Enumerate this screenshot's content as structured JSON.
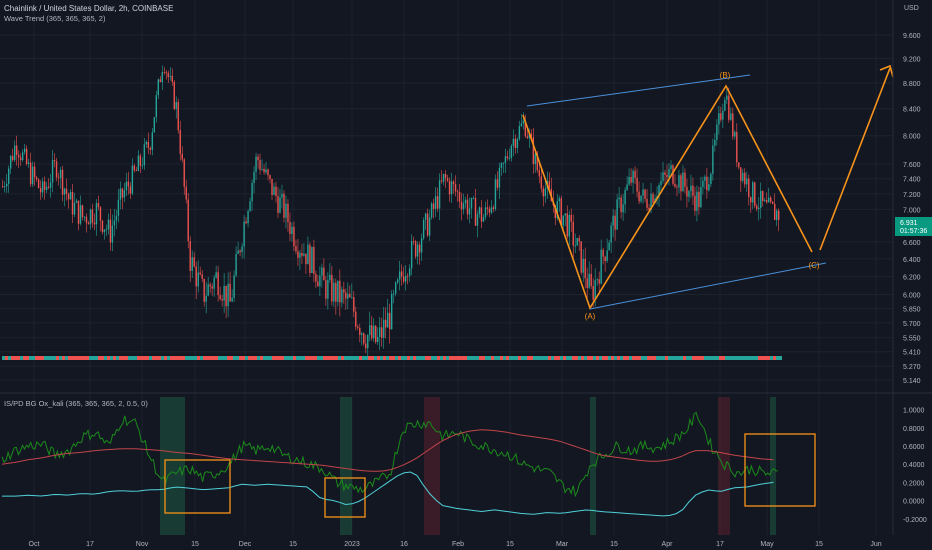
{
  "header": {
    "title": "Chainlink / United States Dollar, 2h, COINBASE",
    "subtitle": "Wave Trend (365, 365, 365, 2)",
    "indicator_title": "IS/PD BG Ox_kali (365, 365, 365, 2, 0.5, 0)",
    "currency": "USD"
  },
  "price_badge": {
    "value": "6.931",
    "countdown": "01:57:36",
    "color": "#089981"
  },
  "colors": {
    "background": "#131722",
    "bull_candle": "#26a69a",
    "bear_candle": "#ef5350",
    "elliott": "#f7931a",
    "channel": "#4a90d9",
    "osc_green": "#1b8a1b",
    "osc_cyan": "#4fd1d9",
    "osc_red": "#c2454a",
    "axis_text": "#b2b5be"
  },
  "chart_data": [
    {
      "type": "candlestick",
      "title": "Chainlink / United States Dollar, 2h, COINBASE",
      "price_axis_ticks": [
        "9.600",
        "9.200",
        "8.800",
        "8.400",
        "8.000",
        "7.600",
        "7.400",
        "7.200",
        "7.000",
        "6.600",
        "6.400",
        "6.200",
        "6.000",
        "5.850",
        "5.700",
        "5.550",
        "5.410",
        "5.270",
        "5.140"
      ],
      "time_axis_ticks": [
        "Oct",
        "17",
        "Nov",
        "15",
        "Dec",
        "15",
        "2023",
        "16",
        "Feb",
        "15",
        "Mar",
        "15",
        "Apr",
        "17",
        "May",
        "15",
        "Jun"
      ],
      "close_series": [
        7.3,
        7.9,
        7.5,
        7.2,
        7.6,
        7.1,
        6.9,
        7.0,
        6.7,
        7.2,
        7.5,
        7.9,
        9.2,
        8.4,
        6.4,
        6.0,
        6.2,
        5.9,
        6.8,
        7.7,
        7.3,
        7.0,
        6.6,
        6.4,
        6.1,
        6.0,
        5.9,
        5.6,
        5.5,
        5.8,
        6.3,
        6.6,
        6.9,
        7.4,
        7.2,
        7.0,
        6.9,
        7.3,
        7.9,
        8.2,
        7.5,
        7.1,
        6.9,
        6.5,
        6.0,
        6.5,
        7.0,
        7.4,
        7.1,
        7.3,
        7.5,
        7.3,
        7.1,
        7.6,
        8.7,
        7.6,
        7.2,
        7.0,
        6.95
      ],
      "annotations": [
        {
          "label": "(A)",
          "price": 5.95
        },
        {
          "label": "(B)",
          "price": 8.75
        },
        {
          "label": "(C)",
          "price": 6.45
        }
      ]
    },
    {
      "type": "line",
      "title": "IS/PD BG Ox_kali (365, 365, 365, 2, 0.5, 0)",
      "y_axis_ticks": [
        "1.0000",
        "0.8000",
        "0.6000",
        "0.4000",
        "0.2000",
        "0.0000",
        "-0.2000"
      ],
      "ylim": [
        -0.3,
        1.05
      ],
      "series": [
        {
          "values": [
            0.45,
            0.55,
            0.6,
            0.62,
            0.5,
            0.55,
            0.7,
            0.75,
            0.6,
            0.9,
            0.85,
            0.5,
            0.2,
            0.3,
            0.35,
            0.25,
            0.3,
            0.4,
            0.6,
            0.55,
            0.6,
            0.5,
            0.45,
            0.4,
            0.35,
            0.2,
            0.15,
            0.12,
            0.2,
            0.3,
            0.8,
            0.85,
            0.85,
            0.7,
            0.75,
            0.65,
            0.6,
            0.55,
            0.5,
            0.4,
            0.35,
            0.3,
            0.15,
            0.1,
            0.4,
            0.5,
            0.6,
            0.55,
            0.6,
            0.58,
            0.65,
            0.75,
            0.95,
            0.6,
            0.4,
            0.3,
            0.35,
            0.3,
            0.3
          ]
        },
        {
          "values": [
            0.4,
            0.42,
            0.45,
            0.47,
            0.5,
            0.52,
            0.53,
            0.55,
            0.56,
            0.57,
            0.57,
            0.56,
            0.55,
            0.53,
            0.52,
            0.5,
            0.48,
            0.46,
            0.45,
            0.44,
            0.43,
            0.42,
            0.41,
            0.4,
            0.39,
            0.37,
            0.35,
            0.33,
            0.32,
            0.33,
            0.38,
            0.45,
            0.55,
            0.65,
            0.72,
            0.76,
            0.78,
            0.77,
            0.75,
            0.72,
            0.7,
            0.68,
            0.65,
            0.6,
            0.55,
            0.5,
            0.48,
            0.46,
            0.44,
            0.43,
            0.44,
            0.48,
            0.55,
            0.55,
            0.53,
            0.5,
            0.48,
            0.46,
            0.45
          ]
        },
        {
          "values": [
            0.05,
            0.05,
            0.06,
            0.05,
            0.07,
            0.06,
            0.08,
            0.07,
            0.1,
            0.11,
            0.1,
            0.12,
            0.12,
            0.15,
            0.14,
            0.12,
            0.13,
            0.14,
            0.18,
            0.17,
            0.18,
            0.17,
            0.16,
            0.15,
            0.02,
            0.0,
            -0.05,
            0.0,
            0.1,
            0.2,
            0.3,
            0.32,
            0.1,
            -0.05,
            -0.08,
            -0.1,
            -0.12,
            -0.1,
            -0.12,
            -0.14,
            -0.15,
            -0.13,
            -0.14,
            -0.12,
            -0.1,
            -0.12,
            -0.13,
            -0.14,
            -0.15,
            -0.16,
            -0.17,
            -0.13,
            0.05,
            0.12,
            0.1,
            0.14,
            0.15,
            0.18,
            0.2
          ]
        }
      ]
    }
  ]
}
